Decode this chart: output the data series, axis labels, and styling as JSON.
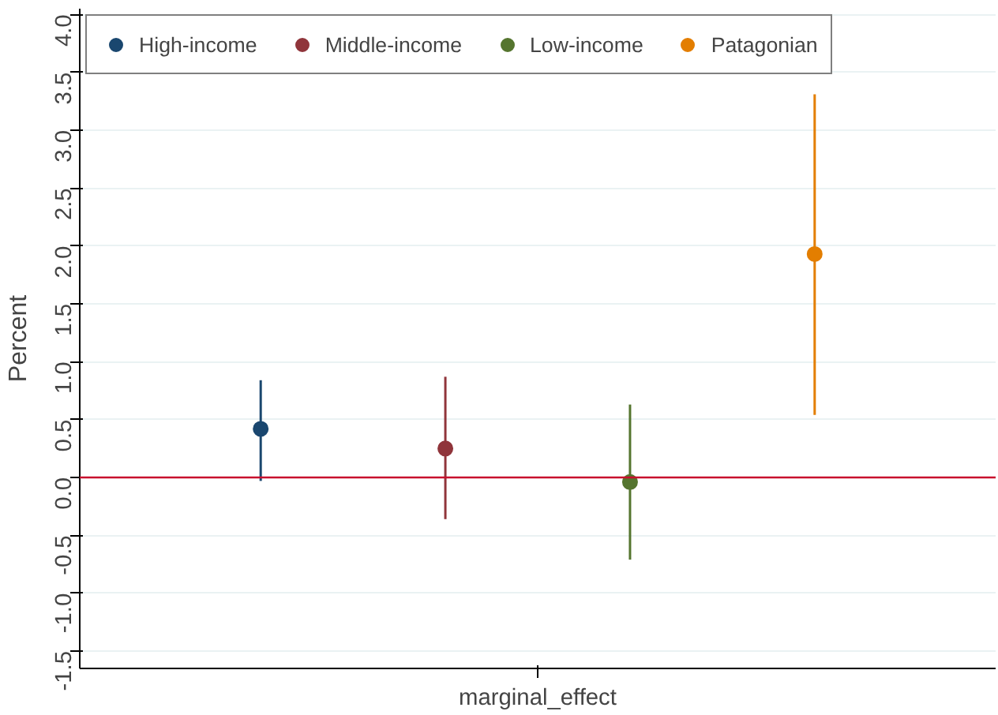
{
  "chart_data": {
    "type": "scatter",
    "ylabel": "Percent",
    "categories": [
      "marginal_effect"
    ],
    "series": [
      {
        "name": "High-income",
        "color": "#1a476f",
        "values": [
          0.42
        ],
        "errors": [
          [
            -0.03,
            0.84
          ]
        ]
      },
      {
        "name": "Middle-income",
        "color": "#90353b",
        "values": [
          0.25
        ],
        "errors": [
          [
            -0.36,
            0.87
          ]
        ]
      },
      {
        "name": "Low-income",
        "color": "#55752f",
        "values": [
          -0.04
        ],
        "errors": [
          [
            -0.71,
            0.63
          ]
        ]
      },
      {
        "name": "Patagonian",
        "color": "#e37e00",
        "values": [
          1.93
        ],
        "errors": [
          [
            0.54,
            3.31
          ]
        ]
      }
    ],
    "ylim": [
      -1.65,
      4.05
    ],
    "yticks": [
      {
        "value": -1.5,
        "label": "-1.5"
      },
      {
        "value": -1.0,
        "label": "-1.0"
      },
      {
        "value": -0.5,
        "label": "-0.5"
      },
      {
        "value": 0,
        "label": "0.0"
      },
      {
        "value": 0.5,
        "label": "0.5"
      },
      {
        "value": 1.0,
        "label": "1.0"
      },
      {
        "value": 1.5,
        "label": "1.5"
      },
      {
        "value": 2.0,
        "label": "2.0"
      },
      {
        "value": 2.5,
        "label": "2.5"
      },
      {
        "value": 3.0,
        "label": "3.0"
      },
      {
        "value": 3.5,
        "label": "3.5"
      },
      {
        "value": 4.0,
        "label": "4.0"
      }
    ],
    "ref_lines": [
      {
        "axis": "y",
        "value": 0,
        "color": "#c8102e"
      }
    ],
    "grid": "y",
    "legend": "top left",
    "marker": "circle"
  }
}
